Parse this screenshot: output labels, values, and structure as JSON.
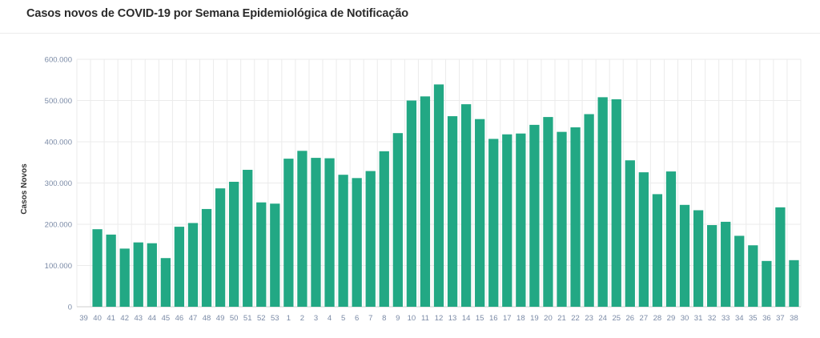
{
  "title": "Casos novos de COVID-19 por Semana Epidemiológica de Notificação",
  "colors": {
    "bar": "#22a884",
    "grid": "#ebebeb",
    "axis_text": "#7a8aa6"
  },
  "chart_data": {
    "type": "bar",
    "title": "",
    "xlabel": "",
    "ylabel": "Casos Novos",
    "ylim": [
      0,
      600000
    ],
    "yticks": [
      0,
      100000,
      200000,
      300000,
      400000,
      500000,
      600000
    ],
    "ytick_labels": [
      "0",
      "100.000",
      "200.000",
      "300.000",
      "400.000",
      "500.000",
      "600.000"
    ],
    "grid": true,
    "categories": [
      "39",
      "40",
      "41",
      "42",
      "43",
      "44",
      "45",
      "46",
      "47",
      "48",
      "49",
      "50",
      "51",
      "52",
      "53",
      "1",
      "2",
      "3",
      "4",
      "5",
      "6",
      "7",
      "8",
      "9",
      "10",
      "11",
      "12",
      "13",
      "14",
      "15",
      "16",
      "17",
      "18",
      "19",
      "20",
      "21",
      "22",
      "23",
      "24",
      "25",
      "26",
      "27",
      "28",
      "29",
      "30",
      "31",
      "32",
      "33",
      "34",
      "35",
      "36",
      "37",
      "38"
    ],
    "values": [
      0,
      188000,
      175000,
      141000,
      156000,
      154000,
      118000,
      194000,
      203000,
      237000,
      287000,
      303000,
      332000,
      253000,
      250000,
      359000,
      378000,
      361000,
      360000,
      320000,
      312000,
      329000,
      377000,
      421000,
      500000,
      510000,
      539000,
      462000,
      491000,
      455000,
      407000,
      418000,
      420000,
      441000,
      460000,
      424000,
      435000,
      467000,
      508000,
      503000,
      355000,
      326000,
      273000,
      328000,
      247000,
      234000,
      198000,
      206000,
      172000,
      149000,
      111000,
      241000,
      113000
    ]
  }
}
